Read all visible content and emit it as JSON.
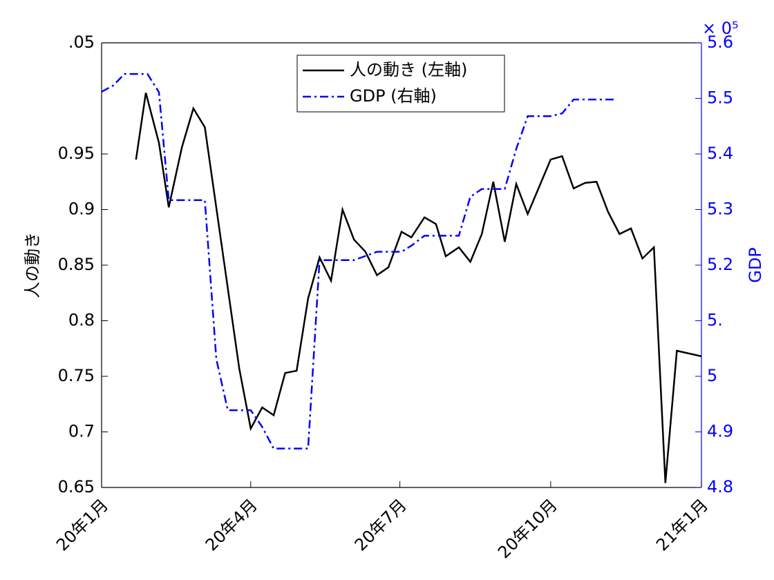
{
  "chart_data": {
    "type": "line",
    "ylabel": "人の動き",
    "y2label": "GDP",
    "y2_multiplier": "× 0⁵",
    "xlim": [
      0,
      366
    ],
    "xticks": [
      {
        "value": 0,
        "label": "20年1月"
      },
      {
        "value": 91,
        "label": "20年4月"
      },
      {
        "value": 182,
        "label": "20年7月"
      },
      {
        "value": 274,
        "label": "20年10月"
      },
      {
        "value": 366,
        "label": "21年1月"
      }
    ],
    "ylim": [
      0.65,
      1.05
    ],
    "yticks": [
      0.65,
      0.7,
      0.75,
      0.8,
      0.85,
      0.9,
      0.95,
      {
        "value": 1.05,
        "label": ".05"
      }
    ],
    "y2lim": [
      4.8,
      5.6
    ],
    "y2ticks": [
      4.8,
      4.9,
      5,
      {
        "value": 5.1,
        "label": "5."
      },
      5.2,
      5.3,
      5.4,
      5.5,
      5.6
    ],
    "legend": "top",
    "series": [
      {
        "name": "人の動き (左軸)",
        "color": "#000000",
        "style": "solid",
        "x": [
          21,
          27,
          35,
          41,
          49,
          56,
          63,
          84,
          91,
          98,
          105,
          112,
          119,
          126,
          133,
          140,
          147,
          154,
          161,
          168,
          175,
          183,
          189,
          197,
          204,
          210,
          218,
          225,
          232,
          239,
          246,
          253,
          260,
          274,
          281,
          288,
          295,
          302,
          309,
          316,
          323,
          330,
          337,
          344,
          351,
          366
        ],
        "values": [
          0.945,
          1.005,
          0.96,
          0.902,
          0.956,
          0.991,
          0.974,
          0.757,
          0.703,
          0.722,
          0.715,
          0.753,
          0.755,
          0.82,
          0.857,
          0.836,
          0.9,
          0.873,
          0.862,
          0.841,
          0.848,
          0.88,
          0.875,
          0.893,
          0.887,
          0.858,
          0.866,
          0.853,
          0.878,
          0.925,
          0.871,
          0.923,
          0.896,
          0.945,
          0.948,
          0.919,
          0.924,
          0.925,
          0.898,
          0.878,
          0.883,
          0.856,
          0.866,
          0.654,
          0.773,
          0.768
        ]
      },
      {
        "name": "GDP (右軸)",
        "color": "#0000ff",
        "style": "dashdot",
        "axis": "y2",
        "x": [
          0,
          7,
          14,
          28,
          35,
          41,
          63,
          70,
          77,
          91,
          98,
          105,
          126,
          133,
          154,
          168,
          175,
          183,
          189,
          197,
          218,
          225,
          232,
          246,
          253,
          260,
          274,
          281,
          288,
          313
        ],
        "values": [
          5.512,
          5.523,
          5.544,
          5.544,
          5.511,
          5.317,
          5.317,
          5.031,
          4.939,
          4.939,
          4.909,
          4.87,
          4.87,
          5.209,
          5.209,
          5.224,
          5.224,
          5.224,
          5.235,
          5.253,
          5.253,
          5.323,
          5.337,
          5.337,
          5.409,
          5.468,
          5.468,
          5.473,
          5.498,
          5.498
        ]
      }
    ]
  }
}
